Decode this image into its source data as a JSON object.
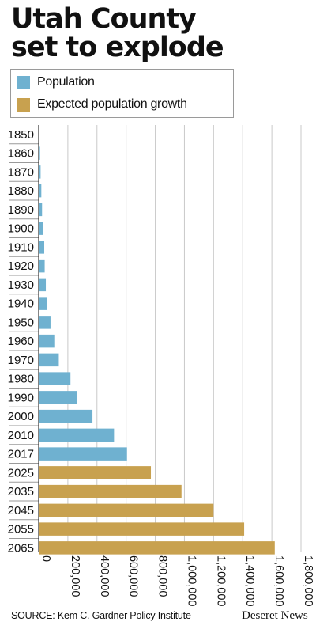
{
  "title_line1": "Utah County",
  "title_line2": "set to explode",
  "legend": [
    {
      "label": "Population",
      "color": "#6fb1d0"
    },
    {
      "label": "Expected population growth",
      "color": "#c8a14f"
    }
  ],
  "source": "SOURCE: Kem C. Gardner Policy Institute",
  "brand": "Deseret News",
  "chart_data": {
    "type": "bar",
    "orientation": "horizontal",
    "categories": [
      "1850",
      "1860",
      "1870",
      "1880",
      "1890",
      "1900",
      "1910",
      "1920",
      "1930",
      "1940",
      "1950",
      "1960",
      "1970",
      "1980",
      "1990",
      "2000",
      "2010",
      "2017",
      "2025",
      "2035",
      "2045",
      "2055",
      "2065"
    ],
    "values": [
      2000,
      9000,
      13000,
      18000,
      23000,
      32000,
      38000,
      41000,
      49000,
      57000,
      81000,
      107000,
      138000,
      218000,
      264000,
      369000,
      517000,
      606000,
      770000,
      980000,
      1200000,
      1410000,
      1620000
    ],
    "series_type": [
      "Population",
      "Population",
      "Population",
      "Population",
      "Population",
      "Population",
      "Population",
      "Population",
      "Population",
      "Population",
      "Population",
      "Population",
      "Population",
      "Population",
      "Population",
      "Population",
      "Population",
      "Population",
      "Expected population growth",
      "Expected population growth",
      "Expected population growth",
      "Expected population growth",
      "Expected population growth"
    ],
    "xlim": [
      0,
      1800000
    ],
    "xticks": [
      0,
      200000,
      400000,
      600000,
      800000,
      1000000,
      1200000,
      1400000,
      1600000,
      1800000
    ],
    "xtick_labels": [
      "0",
      "200,000",
      "400,000",
      "600,000",
      "800,000",
      "1,000,000",
      "1,200,000",
      "1,400,000",
      "1,600,000",
      "1,800,000"
    ],
    "grid": "vertical"
  }
}
